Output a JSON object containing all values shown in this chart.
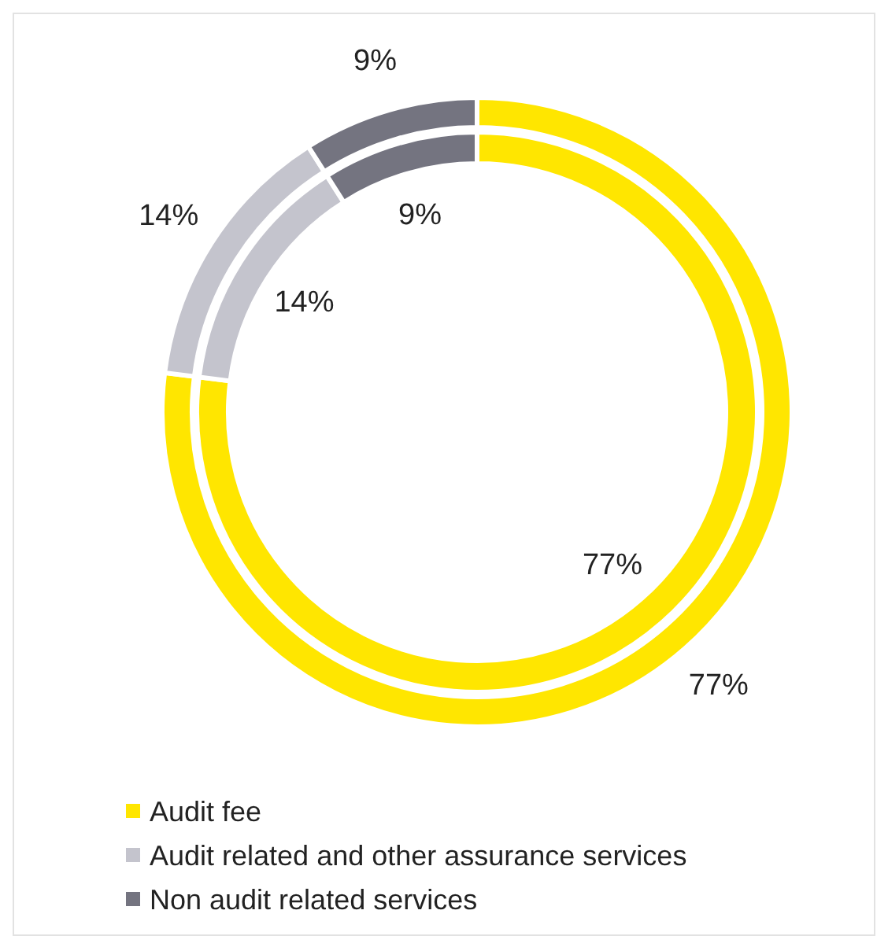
{
  "chart_data": [
    {
      "type": "donut",
      "categories": [
        "Audit fee",
        "Audit related and other assurance services",
        "Non audit related services"
      ],
      "colors": [
        "#ffe600",
        "#c4c4cd",
        "#747480"
      ],
      "values": [
        77,
        14,
        9
      ],
      "value_labels": [
        "77%",
        "14%",
        "9%"
      ],
      "legend": "bottom"
    },
    {
      "type": "donut",
      "categories": [
        null,
        null,
        null
      ],
      "colors": [
        "#ffe600",
        "#c4c4cd",
        "#747480"
      ],
      "values": [
        77,
        14,
        9
      ],
      "value_labels": [
        "77%",
        "14%",
        "9%"
      ]
    }
  ]
}
